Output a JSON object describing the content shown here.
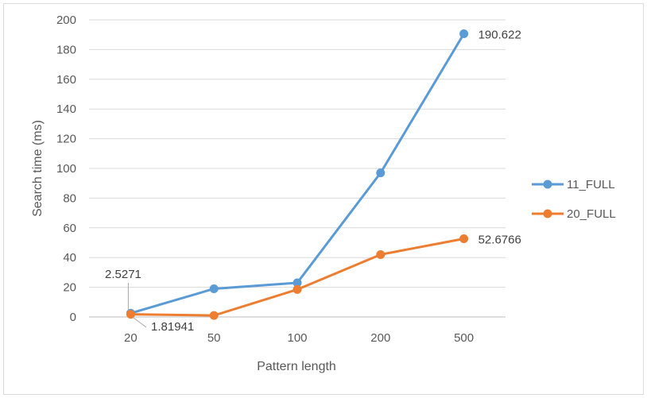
{
  "chart_data": {
    "type": "line",
    "categories": [
      "20",
      "50",
      "100",
      "200",
      "500"
    ],
    "series": [
      {
        "name": "11_FULL",
        "color": "#5b9bd5",
        "values": [
          2.5271,
          19,
          23,
          97,
          190.622
        ]
      },
      {
        "name": "20_FULL",
        "color": "#ed7d31",
        "values": [
          1.81941,
          1,
          18.5,
          42,
          52.6766
        ]
      }
    ],
    "xlabel": "Pattern length",
    "ylabel": "Search time (ms)",
    "ylim": [
      0,
      200
    ],
    "yticks": [
      "0",
      "20",
      "40",
      "60",
      "80",
      "100",
      "120",
      "140",
      "160",
      "180",
      "200"
    ],
    "data_labels": [
      {
        "series": 0,
        "index": 0,
        "text": "2.5271"
      },
      {
        "series": 1,
        "index": 0,
        "text": "1.81941"
      },
      {
        "series": 0,
        "index": 4,
        "text": "190.622"
      },
      {
        "series": 1,
        "index": 4,
        "text": "52.6766"
      }
    ],
    "grid": true,
    "legend": "right"
  }
}
